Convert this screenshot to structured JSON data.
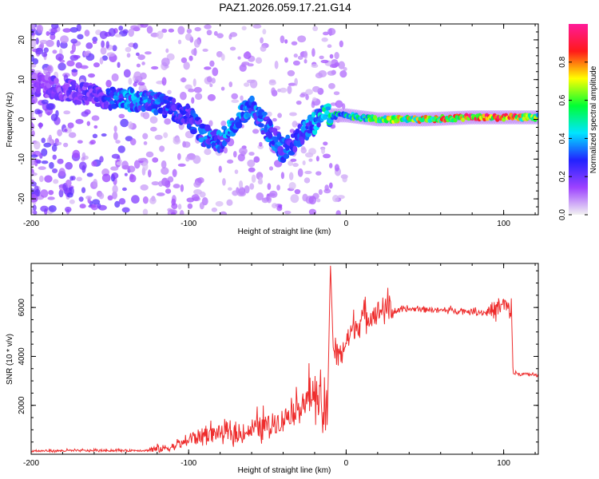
{
  "chart_data": [
    {
      "type": "heatmap",
      "title": "PAZ1.2026.059.17.21.G14",
      "xlabel": "Height of straight line (km)",
      "ylabel": "Frequency (Hz)",
      "xlim": [
        -200,
        122
      ],
      "ylim": [
        -24,
        24
      ],
      "xticks": [
        -200,
        -100,
        0,
        100
      ],
      "yticks": [
        -20,
        -10,
        0,
        10,
        20
      ],
      "colorbar": {
        "label": "Normalized spectral amplitude",
        "range": [
          0.0,
          1.0
        ],
        "ticks": [
          0.0,
          0.2,
          0.4,
          0.6,
          0.8
        ],
        "tick_labels": [
          "0.0",
          "0.2",
          "0.4",
          "0.6",
          "0.8"
        ],
        "colormap": [
          "#f2f2f2",
          "#9d42ff",
          "#2222ff",
          "#00e5ff",
          "#00ff33",
          "#ffff00",
          "#ff1a1a",
          "#ff1a99"
        ]
      },
      "ridge": {
        "description_points_x_km": [
          -200,
          -160,
          -140,
          -120,
          -100,
          -90,
          -80,
          -70,
          -60,
          -50,
          -40,
          -30,
          -20,
          -15,
          -10,
          0,
          20,
          50,
          80,
          100,
          122
        ],
        "frequency_hz": [
          9,
          6,
          5,
          4,
          1,
          -4,
          -6,
          0,
          3,
          -2,
          -8,
          -4,
          -1,
          2,
          1,
          1,
          0,
          0,
          0.5,
          0.5,
          0.5
        ],
        "amplitude": [
          0.15,
          0.2,
          0.35,
          0.3,
          0.25,
          0.3,
          0.3,
          0.35,
          0.3,
          0.3,
          0.3,
          0.3,
          0.35,
          0.4,
          0.45,
          0.45,
          0.6,
          0.65,
          0.8,
          0.85,
          0.6
        ]
      }
    },
    {
      "type": "line",
      "xlabel": "Height of straight line (km)",
      "ylabel": "SNR (10 * v/v)",
      "xlim": [
        -200,
        122
      ],
      "ylim": [
        0,
        7800
      ],
      "xticks": [
        -200,
        -100,
        0,
        100
      ],
      "yticks": [
        2000,
        4000,
        6000
      ],
      "color": "#ee2c2c",
      "series": [
        {
          "name": "SNR",
          "x": [
            -200,
            -180,
            -160,
            -140,
            -120,
            -110,
            -100,
            -90,
            -80,
            -70,
            -60,
            -50,
            -40,
            -30,
            -25,
            -20,
            -15,
            -12,
            -10,
            -8,
            -5,
            0,
            5,
            10,
            15,
            20,
            25,
            30,
            40,
            50,
            60,
            70,
            80,
            90,
            95,
            100,
            103,
            105,
            106,
            110,
            115,
            122
          ],
          "y": [
            120,
            130,
            140,
            140,
            150,
            250,
            500,
            700,
            800,
            650,
            900,
            1000,
            1300,
            1800,
            2000,
            2300,
            1500,
            1000,
            7800,
            4000,
            3800,
            4400,
            5000,
            5400,
            5500,
            5700,
            5800,
            5800,
            5900,
            5900,
            5850,
            5850,
            5800,
            5750,
            5800,
            6000,
            5800,
            5700,
            3300,
            3250,
            3250,
            3200
          ]
        }
      ],
      "noise": [
        {
          "from_x": -200,
          "to_x": -125,
          "amp": 80
        },
        {
          "from_x": -125,
          "to_x": -100,
          "amp": 300
        },
        {
          "from_x": -100,
          "to_x": -60,
          "amp": 600
        },
        {
          "from_x": -60,
          "to_x": -25,
          "amp": 900
        },
        {
          "from_x": -25,
          "to_x": -12,
          "amp": 1600
        },
        {
          "from_x": -8,
          "to_x": 30,
          "amp": 900
        },
        {
          "from_x": 30,
          "to_x": 90,
          "amp": 200
        },
        {
          "from_x": 90,
          "to_x": 105,
          "amp": 700
        },
        {
          "from_x": 106,
          "to_x": 122,
          "amp": 120
        }
      ]
    }
  ]
}
